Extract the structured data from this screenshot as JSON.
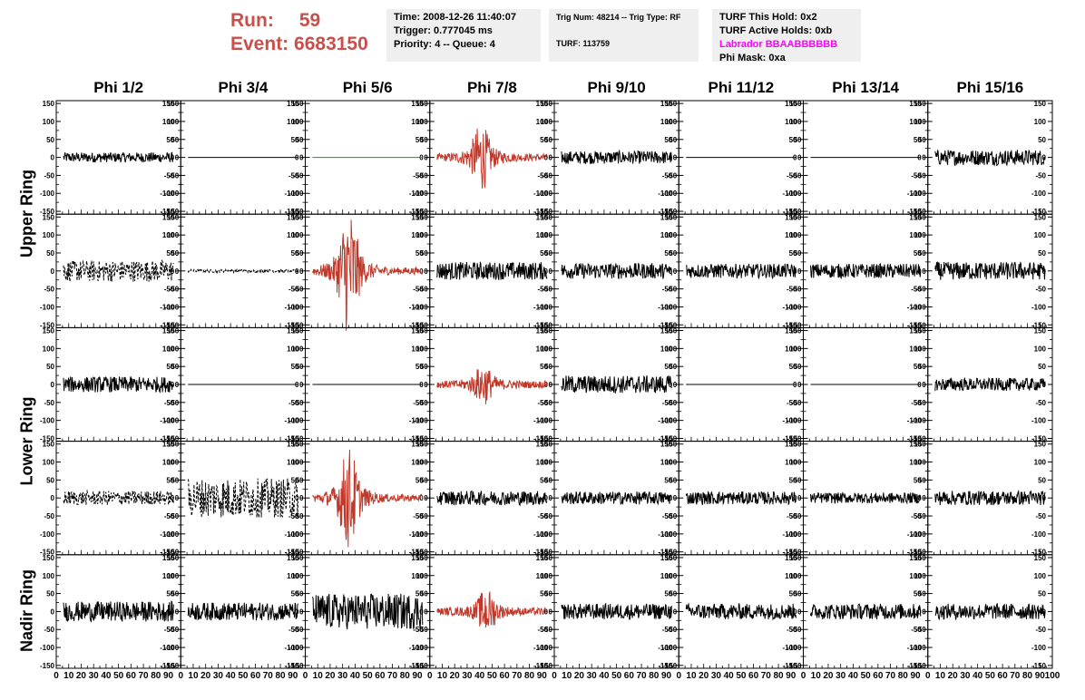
{
  "header": {
    "run_label": "Run:",
    "run_value": "59",
    "event_label": "Event:",
    "event_value": "6683150",
    "time": "Time: 2008-12-26 11:40:07",
    "trigger": "Trigger: 0.777045 ms",
    "priority": "Priority: 4 -- Queue: 4",
    "trig_num": "Trig Num: 48214 -- Trig Type: RF",
    "turf": "TURF: 113759",
    "turf_hold": "TURF This Hold: 0x2",
    "turf_active": "TURF Active Holds: 0xb",
    "labrador": "Labrador BBAABBBBBB",
    "phi_mask": "Phi Mask: 0xa"
  },
  "columns": [
    "Phi 1/2",
    "Phi 3/4",
    "Phi 5/6",
    "Phi 7/8",
    "Phi 9/10",
    "Phi 11/12",
    "Phi 13/14",
    "Phi 15/16"
  ],
  "rings": [
    "Upper Ring",
    "Lower Ring",
    "Nadir Ring"
  ],
  "chart_data": {
    "type": "line",
    "ylim": [
      -150,
      150
    ],
    "xlim": [
      0,
      100
    ],
    "y_ticks": [
      -150,
      -100,
      -50,
      0,
      50,
      100,
      150
    ],
    "x_ticks": [
      0,
      10,
      20,
      30,
      40,
      50,
      60,
      70,
      80,
      90,
      100
    ],
    "colors": {
      "normal": "#000000",
      "triggered": "#c0392b",
      "flat": "#2e8b2e"
    },
    "panels": [
      {
        "row": 0,
        "col": 0,
        "style": "normal",
        "amp": 14
      },
      {
        "row": 0,
        "col": 1,
        "style": "flat",
        "amp": 0
      },
      {
        "row": 0,
        "col": 2,
        "style": "flat_green",
        "amp": 0
      },
      {
        "row": 0,
        "col": 3,
        "style": "triggered",
        "amp": 70,
        "peak": 40
      },
      {
        "row": 0,
        "col": 4,
        "style": "normal",
        "amp": 18
      },
      {
        "row": 0,
        "col": 5,
        "style": "flat",
        "amp": 0
      },
      {
        "row": 0,
        "col": 6,
        "style": "flat",
        "amp": 0
      },
      {
        "row": 0,
        "col": 7,
        "style": "normal",
        "amp": 22
      },
      {
        "row": 1,
        "col": 0,
        "style": "dashed",
        "amp": 30
      },
      {
        "row": 1,
        "col": 1,
        "style": "dashed",
        "amp": 4
      },
      {
        "row": 1,
        "col": 2,
        "style": "triggered",
        "amp": 140,
        "peak": 33
      },
      {
        "row": 1,
        "col": 3,
        "style": "normal",
        "amp": 25
      },
      {
        "row": 1,
        "col": 4,
        "style": "normal",
        "amp": 22
      },
      {
        "row": 1,
        "col": 5,
        "style": "normal",
        "amp": 20
      },
      {
        "row": 1,
        "col": 6,
        "style": "normal",
        "amp": 20
      },
      {
        "row": 1,
        "col": 7,
        "style": "normal",
        "amp": 25
      },
      {
        "row": 2,
        "col": 0,
        "style": "normal",
        "amp": 22
      },
      {
        "row": 2,
        "col": 1,
        "style": "flat",
        "amp": 0
      },
      {
        "row": 2,
        "col": 2,
        "style": "flat",
        "amp": 0
      },
      {
        "row": 2,
        "col": 3,
        "style": "triggered",
        "amp": 40,
        "peak": 42
      },
      {
        "row": 2,
        "col": 4,
        "style": "normal",
        "amp": 25
      },
      {
        "row": 2,
        "col": 5,
        "style": "flat",
        "amp": 0
      },
      {
        "row": 2,
        "col": 6,
        "style": "flat",
        "amp": 0
      },
      {
        "row": 2,
        "col": 7,
        "style": "normal",
        "amp": 18
      },
      {
        "row": 3,
        "col": 0,
        "style": "dashed",
        "amp": 20
      },
      {
        "row": 3,
        "col": 1,
        "style": "dashed",
        "amp": 55
      },
      {
        "row": 3,
        "col": 2,
        "style": "triggered",
        "amp": 110,
        "peak": 33
      },
      {
        "row": 3,
        "col": 3,
        "style": "normal",
        "amp": 20
      },
      {
        "row": 3,
        "col": 4,
        "style": "normal",
        "amp": 18
      },
      {
        "row": 3,
        "col": 5,
        "style": "normal",
        "amp": 18
      },
      {
        "row": 3,
        "col": 6,
        "style": "normal",
        "amp": 15
      },
      {
        "row": 3,
        "col": 7,
        "style": "normal",
        "amp": 20
      },
      {
        "row": 4,
        "col": 0,
        "style": "normal",
        "amp": 28
      },
      {
        "row": 4,
        "col": 1,
        "style": "normal",
        "amp": 25
      },
      {
        "row": 4,
        "col": 2,
        "style": "normal",
        "amp": 50
      },
      {
        "row": 4,
        "col": 3,
        "style": "triggered",
        "amp": 45,
        "peak": 45
      },
      {
        "row": 4,
        "col": 4,
        "style": "normal",
        "amp": 22
      },
      {
        "row": 4,
        "col": 5,
        "style": "normal",
        "amp": 22
      },
      {
        "row": 4,
        "col": 6,
        "style": "normal",
        "amp": 22
      },
      {
        "row": 4,
        "col": 7,
        "style": "normal",
        "amp": 22
      }
    ]
  }
}
